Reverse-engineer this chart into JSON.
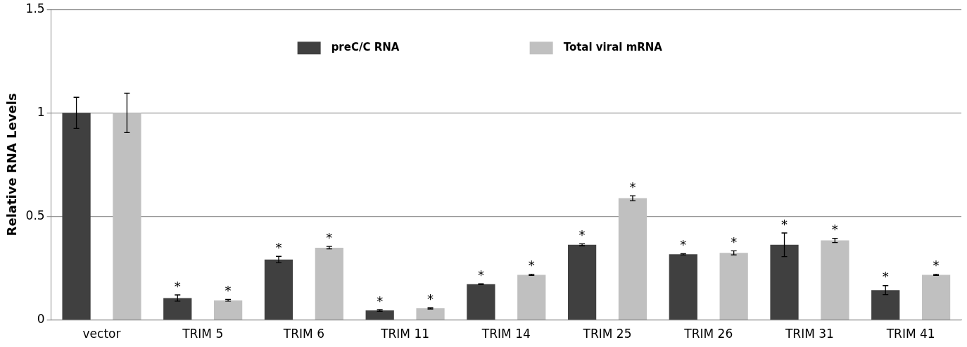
{
  "chart_data": {
    "type": "bar",
    "ylabel": "Relative RNA Levels",
    "categories": [
      "vector",
      "TRIM 5",
      "TRIM 6",
      "TRIM 11",
      "TRIM 14",
      "TRIM 25",
      "TRIM 26",
      "TRIM 31",
      "TRIM 41"
    ],
    "series": [
      {
        "name": "preC/C RNA",
        "color": "#404040",
        "values": [
          1.0,
          0.106,
          0.292,
          0.046,
          0.173,
          0.363,
          0.317,
          0.363,
          0.144
        ],
        "errors": [
          0.075,
          0.015,
          0.015,
          0.004,
          0.002,
          0.005,
          0.003,
          0.057,
          0.022
        ],
        "value_labels": [
          null,
          "*",
          "*",
          "*",
          "*",
          "*",
          "*",
          "*",
          "*"
        ]
      },
      {
        "name": "Total viral mRNA",
        "color": "#c0c0c0",
        "values": [
          1.0,
          0.095,
          0.349,
          0.056,
          0.218,
          0.588,
          0.324,
          0.384,
          0.218
        ],
        "errors": [
          0.095,
          0.004,
          0.006,
          0.003,
          0.003,
          0.012,
          0.01,
          0.01,
          0.003
        ],
        "value_labels": [
          null,
          "*",
          "*",
          "*",
          "*",
          "*",
          "*",
          "*",
          "*"
        ]
      }
    ],
    "ylim": [
      0,
      1.5
    ],
    "yticks": [
      0,
      0.5,
      1,
      1.5
    ],
    "grid": "y",
    "legend": "top"
  }
}
